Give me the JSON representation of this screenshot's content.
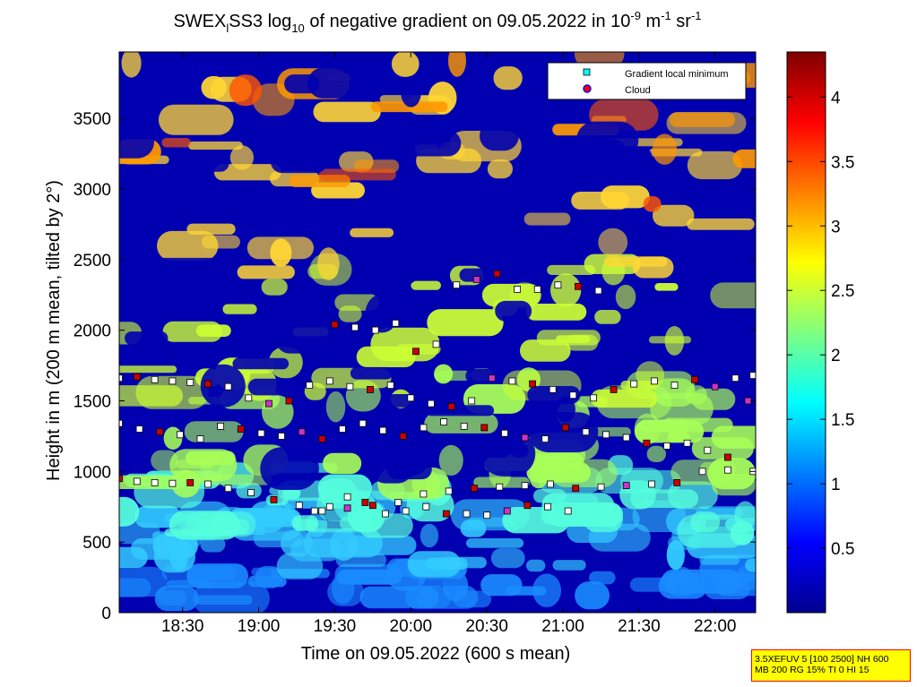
{
  "chart_data": {
    "type": "heatmap",
    "title": {
      "part1": "SWEX",
      "sub1": "l",
      "part2": "SS3 log",
      "sub2": "10",
      "part3": " of negative gradient on 09.05.2022 in 10",
      "sup1": "-9",
      "part4": " m",
      "sup2": "-1",
      "part5": " sr",
      "sup3": "-1"
    },
    "xlabel": "Time on 09.05.2022 (600 s mean)",
    "ylabel": "Height in m (200 m mean, tilted by 2°)",
    "x_ticks": [
      "18:30",
      "19:00",
      "19:30",
      "20:00",
      "20:30",
      "21:00",
      "21:30",
      "22:00"
    ],
    "x_tick_minutes": [
      1110,
      1140,
      1170,
      1200,
      1230,
      1260,
      1290,
      1320
    ],
    "xlim_minutes": [
      1085,
      1336
    ],
    "y_ticks": [
      "0",
      "500",
      "1000",
      "1500",
      "2000",
      "2500",
      "3000",
      "3500"
    ],
    "y_tick_values": [
      0,
      500,
      1000,
      1500,
      2000,
      2500,
      3000,
      3500
    ],
    "ylim": [
      0,
      3970
    ],
    "colorbar": {
      "ticks": [
        "0.5",
        "1",
        "1.5",
        "2",
        "2.5",
        "3",
        "3.5",
        "4"
      ],
      "tick_values": [
        0.5,
        1,
        1.5,
        2,
        2.5,
        3,
        3.5,
        4
      ],
      "range": [
        0,
        4.35
      ],
      "colormap": "jet"
    },
    "legend": {
      "placement": "top-right",
      "entries": [
        {
          "label": "Gradient local minimum",
          "marker": "square",
          "color": "#00ffff"
        },
        {
          "label": "Cloud",
          "marker": "circle",
          "color": "#ff0000",
          "edge": "#0000ff"
        }
      ]
    },
    "point_marker_colors": {
      "fill_white": "#ffffff",
      "cloud": "#cc0000",
      "edge": "#000000",
      "magenta": "#cc33cc"
    },
    "series": [
      {
        "layer": "approx 950 m",
        "x": [
          1085,
          1092,
          1099,
          1106,
          1113,
          1120,
          1128,
          1137,
          1146,
          1156,
          1165,
          1175,
          1185,
          1195,
          1205,
          1215,
          1225,
          1235,
          1245,
          1255,
          1265,
          1275,
          1285,
          1295,
          1305,
          1315,
          1325,
          1335
        ],
        "y": [
          950,
          930,
          920,
          915,
          920,
          910,
          880,
          850,
          800,
          760,
          720,
          740,
          760,
          780,
          840,
          860,
          880,
          890,
          900,
          910,
          880,
          890,
          900,
          910,
          920,
          1000,
          1010,
          1000
        ]
      },
      {
        "layer": "approx 700 m",
        "x": [
          1162,
          1168,
          1175,
          1182,
          1190,
          1198,
          1206,
          1214,
          1222,
          1230,
          1238,
          1246,
          1254,
          1262
        ],
        "y": [
          720,
          750,
          820,
          780,
          700,
          720,
          750,
          700,
          700,
          690,
          720,
          760,
          750,
          720
        ]
      },
      {
        "layer": "approx 1300 m",
        "x": [
          1085,
          1093,
          1101,
          1109,
          1117,
          1125,
          1133,
          1141,
          1149,
          1157,
          1165,
          1173,
          1181,
          1189,
          1197,
          1205,
          1213,
          1221,
          1229,
          1237,
          1245,
          1253,
          1261,
          1269,
          1277,
          1285,
          1293,
          1301,
          1309,
          1317,
          1325,
          1333
        ],
        "y": [
          1340,
          1300,
          1280,
          1260,
          1230,
          1320,
          1300,
          1270,
          1250,
          1280,
          1230,
          1300,
          1340,
          1290,
          1250,
          1310,
          1350,
          1320,
          1310,
          1270,
          1240,
          1230,
          1310,
          1280,
          1260,
          1240,
          1200,
          1180,
          1200,
          1150,
          1100,
          1500
        ]
      },
      {
        "layer": "approx 1650 m",
        "x": [
          1085,
          1092,
          1099,
          1106,
          1113,
          1120,
          1128,
          1136,
          1144,
          1152,
          1160,
          1168,
          1176,
          1184,
          1192,
          1200,
          1208,
          1216,
          1224,
          1232,
          1240,
          1248,
          1256,
          1264,
          1272,
          1280,
          1288,
          1296,
          1304,
          1312,
          1320,
          1328,
          1335
        ],
        "y": [
          1660,
          1670,
          1650,
          1640,
          1630,
          1620,
          1600,
          1520,
          1480,
          1500,
          1610,
          1640,
          1600,
          1580,
          1610,
          1520,
          1480,
          1460,
          1500,
          1660,
          1640,
          1620,
          1580,
          1540,
          1520,
          1580,
          1620,
          1640,
          1610,
          1650,
          1600,
          1660,
          1680
        ]
      },
      {
        "layer": "approx 2300 m",
        "x": [
          1170,
          1178,
          1186,
          1194,
          1202,
          1210,
          1218,
          1226,
          1234,
          1242,
          1250,
          1258,
          1266,
          1274
        ],
        "y": [
          2040,
          2020,
          2000,
          2050,
          1850,
          1900,
          2320,
          2360,
          2400,
          2290,
          2290,
          2320,
          2310,
          2280
        ]
      }
    ]
  },
  "info_box": {
    "line1": "3.5XEFUV 5 [100 2500] NH 600",
    "line2": "MB 200 RG 15% TI 0 HI 15"
  }
}
